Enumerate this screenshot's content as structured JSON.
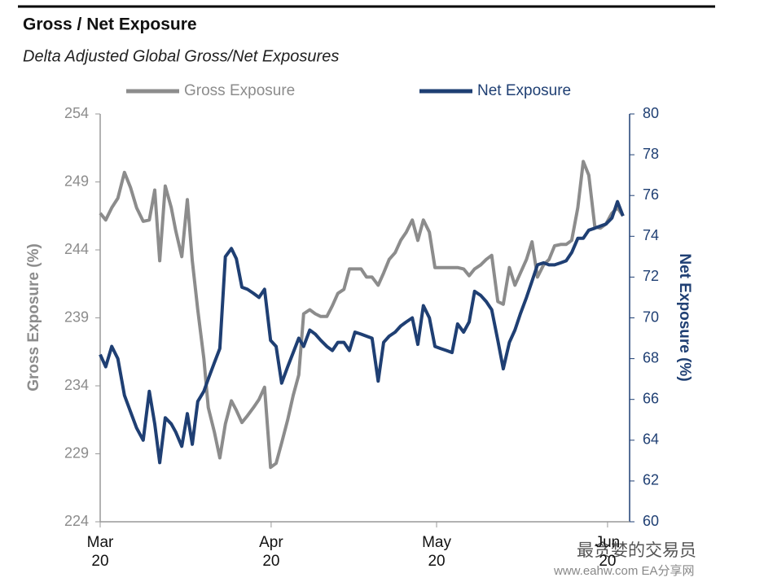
{
  "chart_data": {
    "type": "line",
    "title": "Gross / Net Exposure",
    "subtitle": "Delta Adjusted Global Gross/Net Exposures",
    "ylabel": "Gross Exposure (%)",
    "y2label": "Net Exposure (%)",
    "annotations": [
      "最贪婪的交易员",
      "www.eahw.com EA分享网"
    ],
    "x": [
      0,
      1.0,
      2.1,
      3.2,
      4.4,
      5.5,
      6.6,
      7.8,
      8.9,
      9.9,
      10.8,
      11.8,
      12.9,
      13.7,
      14.8,
      15.8,
      16.7,
      17.7,
      18.8,
      19.6,
      20.7,
      21.7,
      22.7,
      23.8,
      24.7,
      25.7,
      26.7,
      27.8,
      28.8,
      29.8,
      30.9,
      31.9,
      32.9,
      34.0,
      35.0,
      36.0,
      36.9,
      38.0,
      39.0,
      40.0,
      41.1,
      42.1,
      43.1,
      44.2,
      45.2,
      46.2,
      47.3,
      48.3,
      49.3,
      50.4,
      51.4,
      52.4,
      53.5,
      54.5,
      55.5,
      56.6,
      57.6,
      58.6,
      59.7,
      60.7,
      61.7,
      62.8,
      63.8,
      64.8,
      65.9,
      66.9,
      67.9,
      69.0,
      70.0,
      71.0,
      72.1,
      73.1,
      74.2,
      75.2,
      76.2,
      77.3,
      78.3,
      79.3,
      80.4,
      81.4,
      82.4,
      83.5,
      84.5,
      85.5,
      86.6,
      87.6,
      88.6,
      89.7,
      90.7,
      91.7,
      92.8,
      93.8,
      94.8
    ],
    "xlim": [
      0,
      96
    ],
    "xticks": [
      {
        "value": 0,
        "label": "Mar\n20"
      },
      {
        "value": 31,
        "label": "Apr\n20"
      },
      {
        "value": 61,
        "label": "May\n20"
      },
      {
        "value": 92,
        "label": "Jun\n20"
      }
    ],
    "ylim": [
      224,
      254
    ],
    "yticks": [
      224,
      229,
      234,
      239,
      244,
      249,
      254
    ],
    "y2lim": [
      60,
      80
    ],
    "y2ticks": [
      60,
      62,
      64,
      66,
      68,
      70,
      72,
      74,
      76,
      78,
      80
    ],
    "legend": "top",
    "series": [
      {
        "name": "Gross Exposure",
        "color": "#8c8c8c",
        "axis": "y",
        "values": [
          246.7,
          246.2,
          247.1,
          247.8,
          249.7,
          248.6,
          247.1,
          246.1,
          246.2,
          248.4,
          243.2,
          248.7,
          247.1,
          245.4,
          243.5,
          247.7,
          243.2,
          239.6,
          236.0,
          232.4,
          230.6,
          228.7,
          231.2,
          232.9,
          232.2,
          231.3,
          231.8,
          232.4,
          233.0,
          233.9,
          228.0,
          228.3,
          229.8,
          231.5,
          233.3,
          234.8,
          239.3,
          239.6,
          239.3,
          239.1,
          239.1,
          239.9,
          240.8,
          241.1,
          242.6,
          242.6,
          242.6,
          242.0,
          242.0,
          241.4,
          242.3,
          243.3,
          243.8,
          244.7,
          245.3,
          246.2,
          244.7,
          246.2,
          245.3,
          242.7,
          242.7,
          242.7,
          242.7,
          242.7,
          242.6,
          242.1,
          242.6,
          242.9,
          243.3,
          243.6,
          240.2,
          240.0,
          242.7,
          241.4,
          242.3,
          243.3,
          244.6,
          242.0,
          242.9,
          243.3,
          244.3,
          244.4,
          244.4,
          244.7,
          247.1,
          250.5,
          249.5,
          245.7,
          245.6,
          245.9,
          246.7,
          247.1,
          246.5
        ]
      },
      {
        "name": "Net Exposure",
        "color": "#1f3f73",
        "axis": "y2",
        "values": [
          68.2,
          67.6,
          68.6,
          68.0,
          66.2,
          65.4,
          64.6,
          64.0,
          66.4,
          64.8,
          62.9,
          65.1,
          64.8,
          64.4,
          63.7,
          65.3,
          63.8,
          65.9,
          66.4,
          67.0,
          67.8,
          68.5,
          73.0,
          73.4,
          72.9,
          71.5,
          71.4,
          71.2,
          71.0,
          71.4,
          68.9,
          68.6,
          66.8,
          67.6,
          68.3,
          69.0,
          68.6,
          69.4,
          69.2,
          68.9,
          68.6,
          68.4,
          68.8,
          68.8,
          68.4,
          69.3,
          69.2,
          69.1,
          69.0,
          66.9,
          68.8,
          69.1,
          69.3,
          69.6,
          69.8,
          70.0,
          68.7,
          70.6,
          70.0,
          68.6,
          68.5,
          68.4,
          68.3,
          69.7,
          69.3,
          69.8,
          71.3,
          71.1,
          70.8,
          70.4,
          68.9,
          67.5,
          68.8,
          69.4,
          70.2,
          71.0,
          71.8,
          72.6,
          72.7,
          72.6,
          72.6,
          72.7,
          72.8,
          73.2,
          73.9,
          73.9,
          74.3,
          74.4,
          74.5,
          74.6,
          74.9,
          75.7,
          75.0
        ]
      }
    ]
  }
}
